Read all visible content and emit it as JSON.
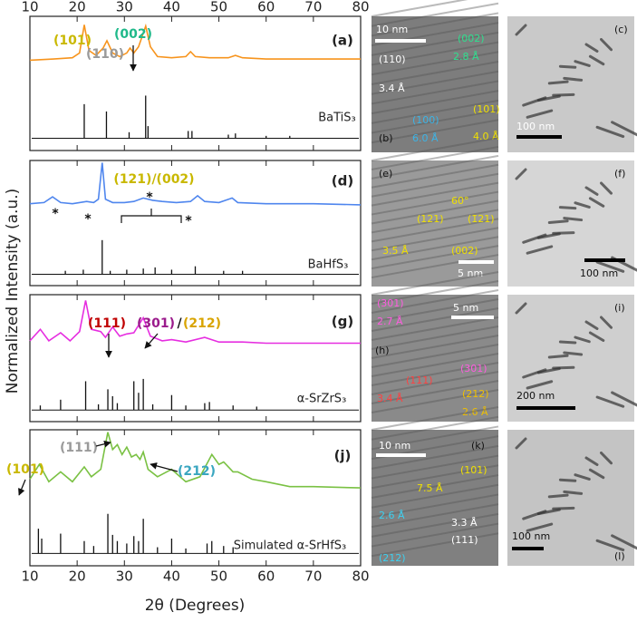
{
  "figure": {
    "x_label": "2θ (Degrees)",
    "y_label": "Normalized Intensity (a.u.)"
  },
  "chart_data": [
    {
      "type": "line",
      "panel": "(a)",
      "color": "#f7941d",
      "xlim": [
        10,
        80
      ],
      "ylim": [
        -0.1,
        1
      ],
      "xticks": [
        10,
        20,
        30,
        40,
        50,
        60,
        70,
        80
      ],
      "x": [
        10,
        15,
        19,
        20.5,
        21.5,
        22.5,
        24,
        25.5,
        26.3,
        27.5,
        29,
        30.5,
        31.2,
        32,
        33,
        34.5,
        35.5,
        37,
        40,
        43,
        44,
        45,
        48,
        52,
        53.5,
        55,
        60,
        70,
        80
      ],
      "values": [
        0.64,
        0.65,
        0.66,
        0.7,
        0.93,
        0.72,
        0.68,
        0.74,
        0.8,
        0.7,
        0.67,
        0.7,
        0.74,
        0.7,
        0.75,
        0.92,
        0.75,
        0.67,
        0.66,
        0.67,
        0.71,
        0.67,
        0.66,
        0.66,
        0.68,
        0.66,
        0.65,
        0.65,
        0.65
      ],
      "sticks": {
        "name": "BaTiS₃",
        "color": "#111111",
        "x": [
          21.5,
          26.2,
          31,
          34.5,
          35,
          43.5,
          44.3,
          52,
          53.5,
          60,
          65
        ],
        "values": [
          0.28,
          0.22,
          0.05,
          0.35,
          0.1,
          0.06,
          0.06,
          0.03,
          0.04,
          0.02,
          0.02
        ]
      },
      "annotations": [
        {
          "text": "(101)",
          "color": "#c9b800"
        },
        {
          "text": "(110)",
          "color": "#9a9a9a"
        },
        {
          "text": "(002)",
          "color": "#1fb98a"
        }
      ]
    },
    {
      "type": "line",
      "panel": "(d)",
      "color": "#4f86ee",
      "xlim": [
        10,
        80
      ],
      "ylim": [
        -0.1,
        1
      ],
      "xticks": [
        10,
        20,
        30,
        40,
        50,
        60,
        70,
        80
      ],
      "x": [
        10,
        13,
        14.8,
        16.5,
        19,
        22,
        23.5,
        24.5,
        25.3,
        26,
        27.5,
        30,
        32,
        34,
        36,
        38,
        41,
        44,
        45.5,
        47,
        50,
        52.8,
        54,
        60,
        70,
        80
      ],
      "values": [
        0.62,
        0.63,
        0.68,
        0.63,
        0.62,
        0.64,
        0.63,
        0.66,
        0.98,
        0.66,
        0.63,
        0.63,
        0.64,
        0.67,
        0.65,
        0.64,
        0.63,
        0.64,
        0.69,
        0.64,
        0.63,
        0.67,
        0.63,
        0.62,
        0.62,
        0.61
      ],
      "sticks": {
        "name": "BaHfS₃",
        "color": "#111111",
        "x": [
          17.5,
          21.3,
          25.3,
          27,
          30.5,
          34,
          36.5,
          40,
          45,
          51,
          55
        ],
        "values": [
          0.03,
          0.04,
          0.3,
          0.03,
          0.04,
          0.05,
          0.06,
          0.04,
          0.07,
          0.03,
          0.03
        ]
      },
      "annotations": [
        {
          "text": "*",
          "color": "#111111"
        },
        {
          "text": "*",
          "color": "#111111"
        },
        {
          "text": "*",
          "color": "#111111"
        },
        {
          "text": "*",
          "color": "#111111"
        },
        {
          "text": "(121)/(002)",
          "color": "#c9b800"
        }
      ]
    },
    {
      "type": "line",
      "panel": "(g)",
      "color": "#e62ee0",
      "xlim": [
        10,
        80
      ],
      "ylim": [
        -0.1,
        1
      ],
      "xticks": [
        10,
        20,
        30,
        40,
        50,
        60,
        70,
        80
      ],
      "x": [
        10,
        12.2,
        14,
        16.5,
        18.5,
        20.5,
        21.8,
        23,
        25,
        26,
        27.5,
        29,
        30.5,
        32,
        34,
        35.5,
        38,
        40,
        43,
        47,
        50,
        55,
        60,
        70,
        80
      ],
      "values": [
        0.6,
        0.7,
        0.6,
        0.67,
        0.6,
        0.68,
        0.95,
        0.7,
        0.68,
        0.63,
        0.72,
        0.64,
        0.66,
        0.67,
        0.8,
        0.64,
        0.6,
        0.61,
        0.59,
        0.63,
        0.59,
        0.59,
        0.58,
        0.58,
        0.58
      ],
      "sticks": {
        "name": "α-SrZrS₃",
        "color": "#111111",
        "x": [
          12.2,
          16.5,
          21.8,
          24.5,
          26.5,
          27.5,
          28.5,
          32,
          33,
          34,
          36,
          40,
          43,
          47,
          48,
          53,
          58
        ],
        "values": [
          0.04,
          0.09,
          0.25,
          0.05,
          0.18,
          0.12,
          0.06,
          0.25,
          0.15,
          0.27,
          0.05,
          0.13,
          0.04,
          0.06,
          0.07,
          0.04,
          0.03
        ]
      },
      "annotations": [
        {
          "text": "(111)",
          "color": "#c00000"
        },
        {
          "text": "(301)",
          "color": "#9b1b8c"
        },
        {
          "text": "/",
          "color": "#111111"
        },
        {
          "text": "(212)",
          "color": "#d9a400"
        }
      ]
    },
    {
      "type": "line",
      "panel": "(j)",
      "color": "#7ac143",
      "xlim": [
        10,
        80
      ],
      "ylim": [
        -0.1,
        1
      ],
      "xticks": [
        10,
        20,
        30,
        40,
        50,
        60,
        70,
        80
      ],
      "x": [
        10,
        12,
        14,
        16.5,
        19,
        21.5,
        23,
        25,
        26.5,
        27.5,
        28.5,
        29.5,
        30.5,
        31.5,
        32.5,
        33.3,
        34,
        35,
        37,
        40,
        43,
        46,
        48.5,
        50,
        51,
        53,
        54,
        57,
        60,
        65,
        70,
        80
      ],
      "values": [
        0.6,
        0.72,
        0.58,
        0.66,
        0.58,
        0.7,
        0.62,
        0.68,
        0.98,
        0.84,
        0.88,
        0.8,
        0.86,
        0.78,
        0.8,
        0.76,
        0.82,
        0.68,
        0.62,
        0.68,
        0.58,
        0.62,
        0.8,
        0.72,
        0.74,
        0.66,
        0.66,
        0.6,
        0.58,
        0.54,
        0.54,
        0.53
      ],
      "sticks": {
        "name": "Simulated α-SrHfS₃",
        "color": "#111111",
        "x": [
          11.8,
          12.5,
          16.5,
          21.5,
          23.5,
          26.5,
          27.5,
          28.5,
          30.5,
          32,
          33,
          34,
          37,
          40,
          43,
          47.5,
          48.5,
          51,
          53
        ],
        "values": [
          0.2,
          0.12,
          0.16,
          0.1,
          0.06,
          0.32,
          0.15,
          0.1,
          0.08,
          0.14,
          0.1,
          0.28,
          0.05,
          0.12,
          0.04,
          0.08,
          0.1,
          0.06,
          0.05
        ]
      },
      "annotations": [
        {
          "text": "(111)",
          "color": "#9a9a9a"
        },
        {
          "text": "(101)",
          "color": "#c9b800"
        },
        {
          "text": "(212)",
          "color": "#3aa6c0"
        }
      ]
    }
  ],
  "images": [
    {
      "background": "#7d7d7d",
      "texts": [
        {
          "text": "10 nm",
          "color": "#ffffff"
        },
        {
          "text": "(002)",
          "color": "#2ee08f"
        },
        {
          "text": "2.8 Å",
          "color": "#2ee08f"
        },
        {
          "text": "(110)",
          "color": "#ffffff"
        },
        {
          "text": "3.4 Å",
          "color": "#ffffff"
        },
        {
          "text": "(100)",
          "color": "#3cb4e6"
        },
        {
          "text": "6.0 Å",
          "color": "#3cb4e6"
        },
        {
          "text": "(101)",
          "color": "#f0e000"
        },
        {
          "text": "4.0 Å",
          "color": "#f0e000"
        },
        {
          "text": "(b)",
          "color": "#111111"
        }
      ]
    },
    {
      "background": "#c9c9c9",
      "texts": [
        {
          "text": "(c)",
          "color": "#111111"
        },
        {
          "text": "100 nm",
          "color": "#ffffff"
        }
      ]
    },
    {
      "background": "#9a9a9a",
      "texts": [
        {
          "text": "(e)",
          "color": "#111111"
        },
        {
          "text": "60°",
          "color": "#f0e000"
        },
        {
          "text": "(121)",
          "color": "#f0e000"
        },
        {
          "text": "(1̄21)",
          "color": "#f0e000"
        },
        {
          "text": "(002)",
          "color": "#f0e000"
        },
        {
          "text": "3.5 Å",
          "color": "#f0e000"
        },
        {
          "text": "5 nm",
          "color": "#ffffff"
        }
      ]
    },
    {
      "background": "#d6d6d6",
      "texts": [
        {
          "text": "(f)",
          "color": "#111111"
        },
        {
          "text": "100 nm",
          "color": "#111111"
        }
      ]
    },
    {
      "background": "#8a8a8a",
      "texts": [
        {
          "text": "5 nm",
          "color": "#ffffff"
        },
        {
          "text": "(301)",
          "color": "#ff5be0"
        },
        {
          "text": "2.7 Å",
          "color": "#ff5be0"
        },
        {
          "text": "(h)",
          "color": "#111111"
        },
        {
          "text": "(111)",
          "color": "#ff4040"
        },
        {
          "text": "3.4 Å",
          "color": "#ff4040"
        },
        {
          "text": "(301)",
          "color": "#ff5be0"
        },
        {
          "text": "(212)",
          "color": "#f0c000"
        },
        {
          "text": "2.6 Å",
          "color": "#f0c000"
        }
      ]
    },
    {
      "background": "#cfcfcf",
      "texts": [
        {
          "text": "(i)",
          "color": "#111111"
        },
        {
          "text": "200 nm",
          "color": "#111111"
        }
      ]
    },
    {
      "background": "#808080",
      "texts": [
        {
          "text": "10 nm",
          "color": "#ffffff"
        },
        {
          "text": "(k)",
          "color": "#111111"
        },
        {
          "text": "(101)",
          "color": "#f0e000"
        },
        {
          "text": "7.5 Å",
          "color": "#f0e000"
        },
        {
          "text": "2.6 Å",
          "color": "#3cd0f0"
        },
        {
          "text": "3.3 Å",
          "color": "#ffffff"
        },
        {
          "text": "(111)",
          "color": "#ffffff"
        },
        {
          "text": "(212)",
          "color": "#3cd0f0"
        }
      ]
    },
    {
      "background": "#c4c4c4",
      "texts": [
        {
          "text": "(l)",
          "color": "#111111"
        },
        {
          "text": "100 nm",
          "color": "#111111"
        }
      ]
    }
  ]
}
